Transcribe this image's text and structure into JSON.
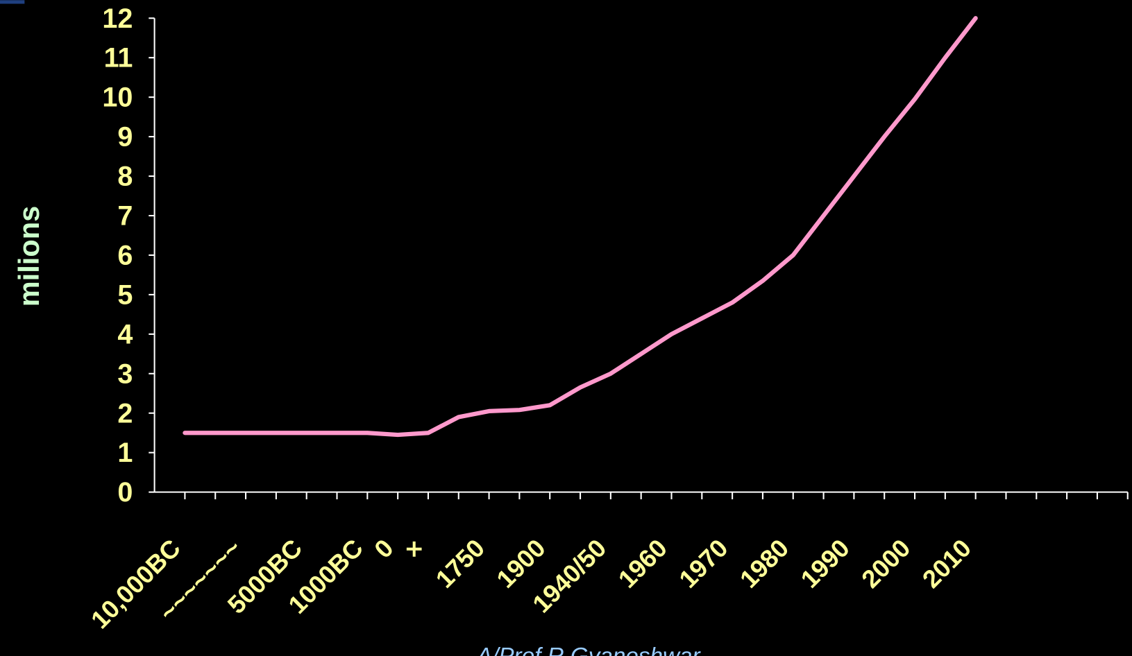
{
  "chart_data": {
    "type": "line",
    "y_label": "milions",
    "source": "A/Prof R Gyaneshwar",
    "categories": [
      "10,000BC",
      null,
      "~~~~~~~",
      null,
      "5000BC",
      null,
      "1000BC",
      "0",
      "×",
      null,
      "1750",
      null,
      "1900",
      null,
      "1940/50",
      null,
      "1960",
      null,
      "1970",
      null,
      "1980",
      null,
      "1990",
      null,
      "2000",
      null,
      "2010",
      null,
      null,
      null,
      null,
      null
    ],
    "series": [
      {
        "color": "#ff99cc",
        "values": [
          1.5,
          1.5,
          1.5,
          1.5,
          1.5,
          1.5,
          1.5,
          1.45,
          1.5,
          1.9,
          2.05,
          2.08,
          2.2,
          2.65,
          3.0,
          3.5,
          4.0,
          4.4,
          4.8,
          5.35,
          6.0,
          7.0,
          8.0,
          9.0,
          9.95,
          11.0,
          12.0,
          null,
          null,
          null,
          null,
          null
        ]
      }
    ],
    "ylim": [
      0,
      12
    ],
    "yticks": [
      0,
      1,
      2,
      3,
      4,
      5,
      6,
      7,
      8,
      9,
      10,
      11,
      12
    ]
  }
}
